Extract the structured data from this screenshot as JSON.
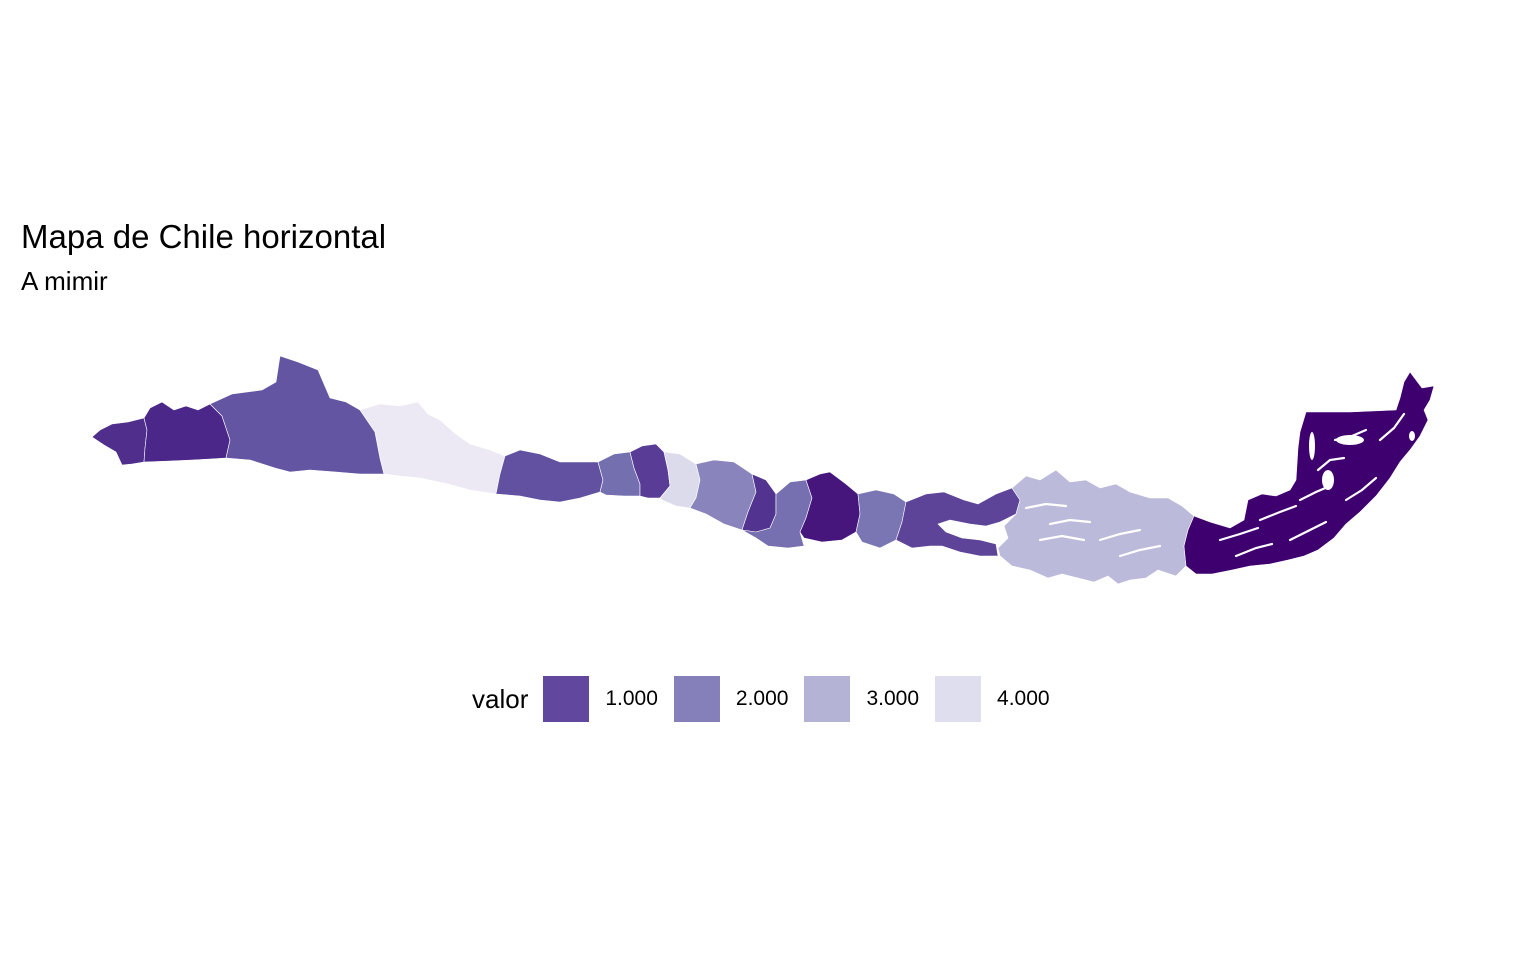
{
  "title": "Mapa de Chile horizontal",
  "subtitle": "A mimir",
  "legend": {
    "title": "valor",
    "items": [
      {
        "label": "1.000",
        "color": "#61479d"
      },
      {
        "label": "2.000",
        "color": "#8580ba"
      },
      {
        "label": "3.000",
        "color": "#b4b3d6"
      },
      {
        "label": "4.000",
        "color": "#dfdeee"
      }
    ]
  },
  "regions": [
    {
      "name": "Arica y Parinacota",
      "color": "#4f2e8c"
    },
    {
      "name": "Tarapacá",
      "color": "#4b2789"
    },
    {
      "name": "Antofagasta",
      "color": "#6455a2"
    },
    {
      "name": "Atacama",
      "color": "#ece9f4"
    },
    {
      "name": "Coquimbo",
      "color": "#6151a0"
    },
    {
      "name": "Valparaíso",
      "color": "#7470b0"
    },
    {
      "name": "Metropolitana",
      "color": "#583c96"
    },
    {
      "name": "O'Higgins",
      "color": "#dcdbec"
    },
    {
      "name": "Maule",
      "color": "#8985bc"
    },
    {
      "name": "Ñuble",
      "color": "#52338f"
    },
    {
      "name": "Biobío",
      "color": "#7670b1"
    },
    {
      "name": "La Araucanía",
      "color": "#46167d"
    },
    {
      "name": "Los Ríos",
      "color": "#7a76b4"
    },
    {
      "name": "Los Lagos",
      "color": "#5d4499"
    },
    {
      "name": "Aysén",
      "color": "#bbbadb"
    },
    {
      "name": "Magallanes",
      "color": "#3f006f"
    }
  ]
}
